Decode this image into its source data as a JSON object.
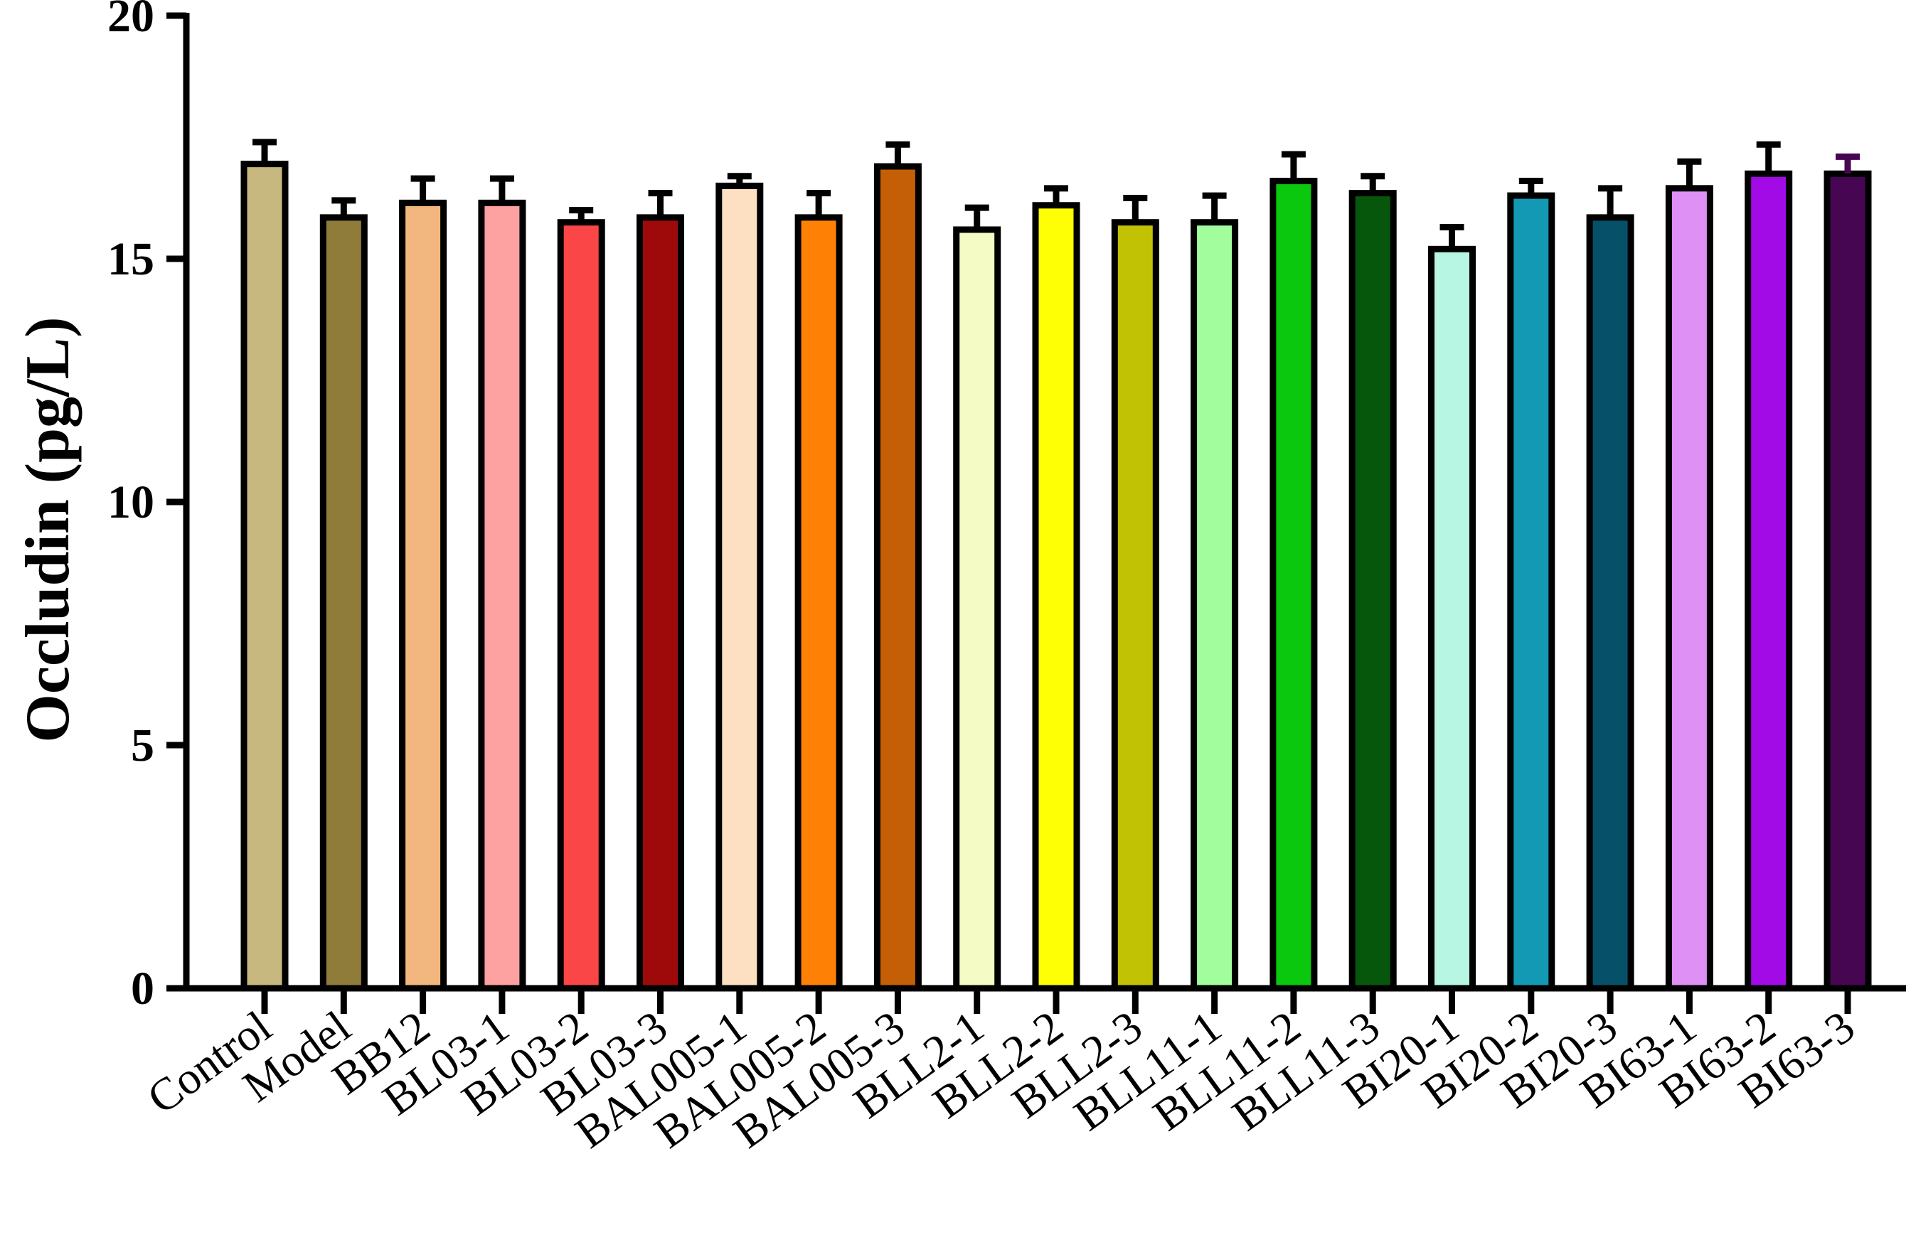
{
  "chart_data": {
    "type": "bar",
    "ylabel": "Occludin (pg/L)",
    "xlabel": "",
    "ylim": [
      0,
      20
    ],
    "yticks": [
      0,
      5,
      10,
      15,
      20
    ],
    "grid": false,
    "error_bars": true,
    "categories": [
      "Control",
      "Model",
      "BB12",
      "BL03-1",
      "BL03-2",
      "BL03-3",
      "BAL005-1",
      "BAL005-2",
      "BAL005-3",
      "BLL2-1",
      "BLL2-2",
      "BLL2-3",
      "BLL11-1",
      "BLL11-2",
      "BLL11-3",
      "BI20-1",
      "BI20-2",
      "BI20-3",
      "BI63-1",
      "BI63-2",
      "BI63-3"
    ],
    "values": [
      16.95,
      15.85,
      16.15,
      16.15,
      15.75,
      15.85,
      16.5,
      15.85,
      16.9,
      15.6,
      16.1,
      15.75,
      15.75,
      16.6,
      16.35,
      15.2,
      16.3,
      15.85,
      16.45,
      16.75,
      16.75
    ],
    "errors": [
      0.45,
      0.35,
      0.5,
      0.5,
      0.25,
      0.5,
      0.2,
      0.5,
      0.45,
      0.45,
      0.35,
      0.5,
      0.55,
      0.55,
      0.35,
      0.45,
      0.3,
      0.6,
      0.55,
      0.6,
      0.35
    ],
    "colors": [
      "#c6b87e",
      "#8f7c3b",
      "#f2b77e",
      "#fda1a1",
      "#fa4646",
      "#9e0a0a",
      "#fde0c2",
      "#fe8105",
      "#c45f08",
      "#f4fbc4",
      "#fefe05",
      "#c2c204",
      "#a2fe9c",
      "#0ac80d",
      "#06570c",
      "#b6f6e3",
      "#1499b5",
      "#065169",
      "#de90f5",
      "#a20be6",
      "#460652"
    ]
  }
}
